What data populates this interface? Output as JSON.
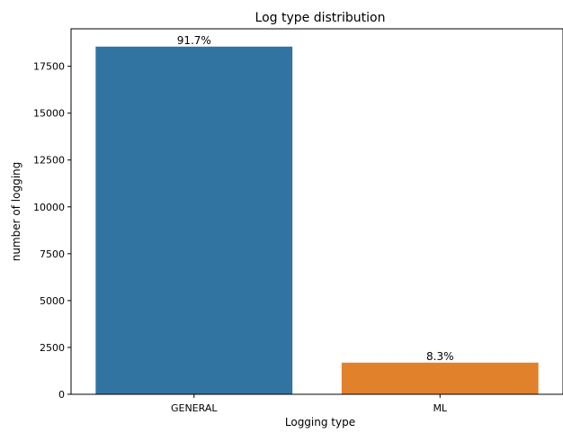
{
  "chart_data": {
    "type": "bar",
    "title": "Log type distribution",
    "xlabel": "Logging type",
    "ylabel": "number of logging",
    "categories": [
      "GENERAL",
      "ML"
    ],
    "values": [
      18550,
      1690
    ],
    "data_labels": [
      "91.7%",
      "8.3%"
    ],
    "colors": [
      "#3274a1",
      "#e1812c"
    ],
    "ylim": [
      0,
      19500
    ],
    "yticks": [
      0,
      2500,
      5000,
      7500,
      10000,
      12500,
      15000,
      17500
    ],
    "ytick_labels": [
      "0",
      "2500",
      "5000",
      "7500",
      "10000",
      "12500",
      "15000",
      "17500"
    ],
    "grid": false,
    "legend": "none"
  }
}
